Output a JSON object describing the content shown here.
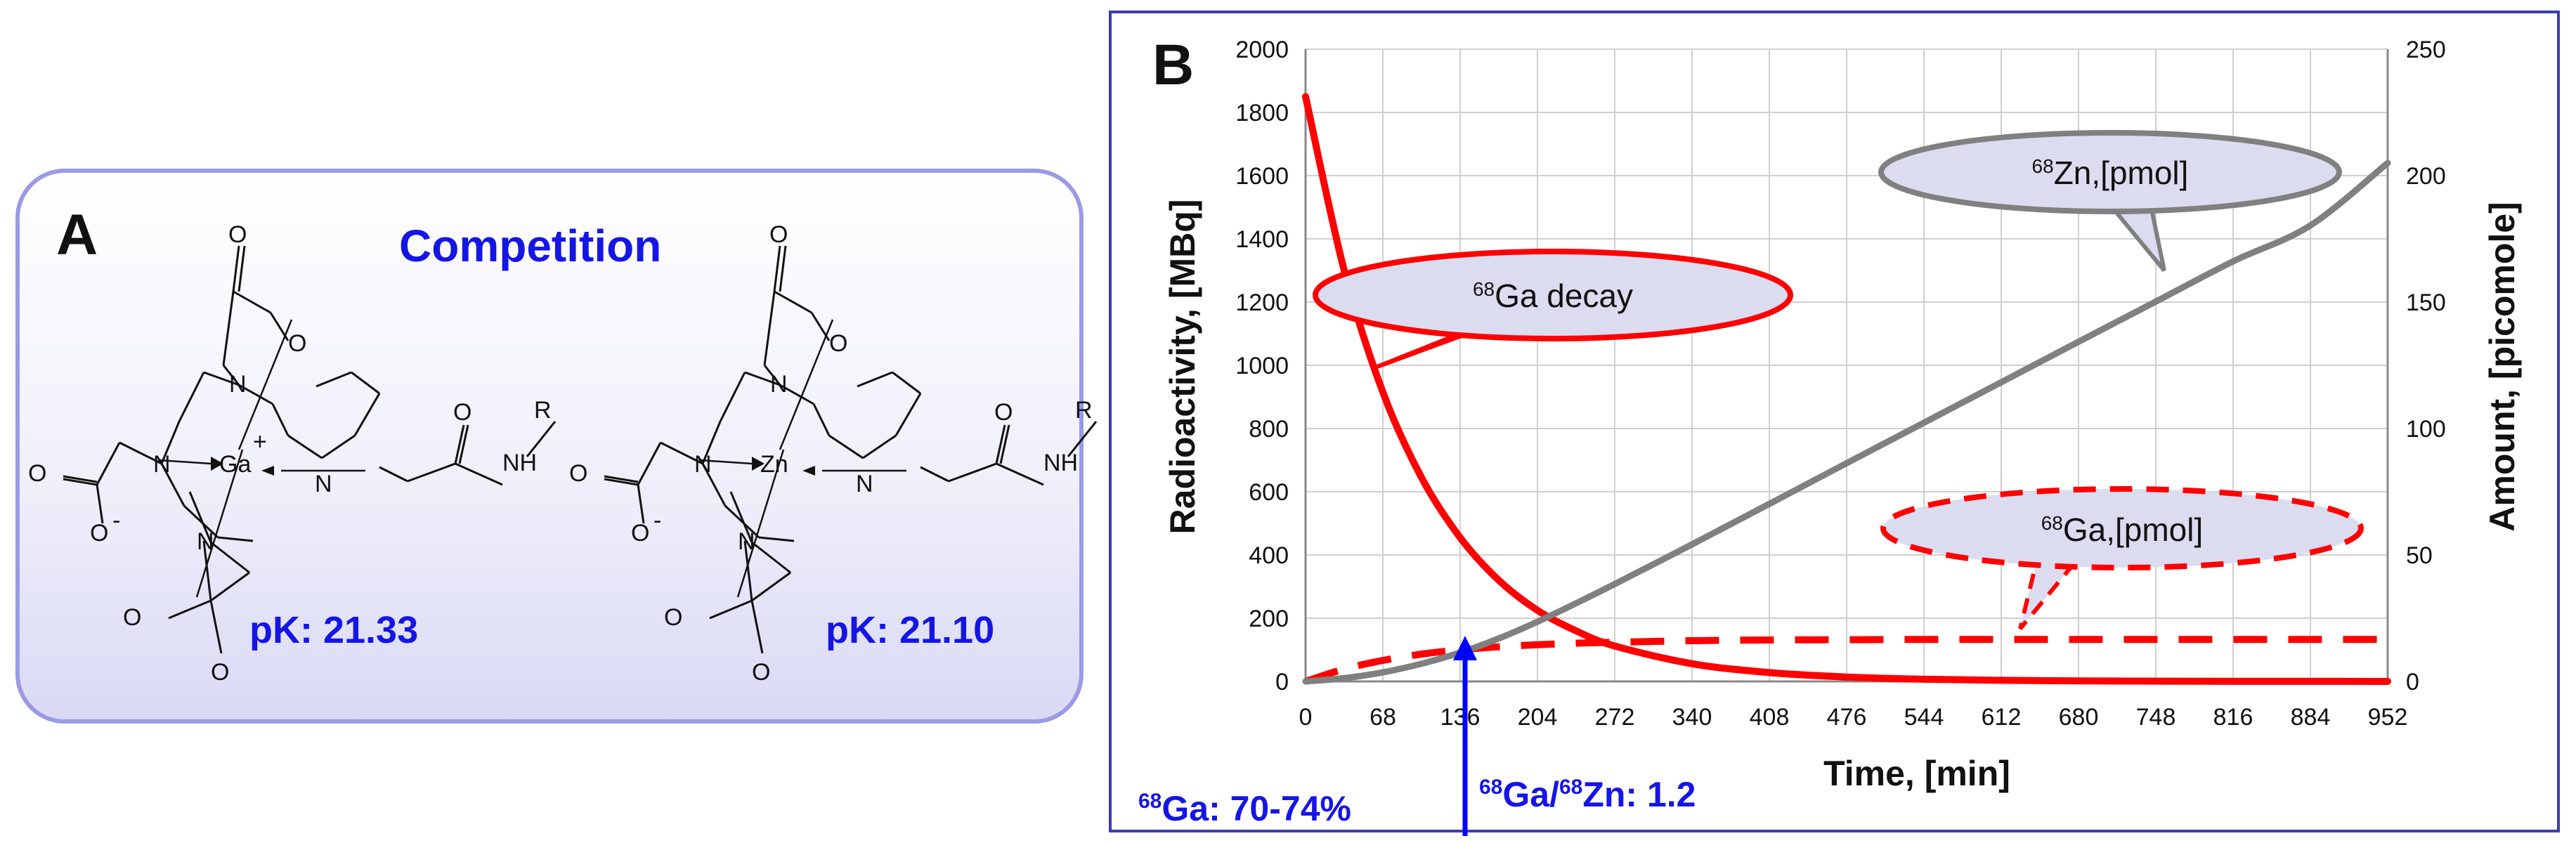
{
  "panel_a": {
    "letter": "A",
    "title": "Competition",
    "mol1": {
      "pk": "pK: 21.33",
      "metal": "Ga",
      "charge": "+"
    },
    "mol2": {
      "pk": "pK: 21.10",
      "metal": "Zn"
    },
    "atoms": {
      "N": "N",
      "O": "O",
      "R": "R",
      "NH": "NH",
      "minus": "-"
    }
  },
  "panel_b": {
    "letter": "B",
    "colors": {
      "ga": "#ff0000",
      "zn": "#808080",
      "arrow": "#0000ff",
      "callout_fill": "#dcdcf0"
    },
    "callouts": {
      "ga_decay": {
        "sup": "68",
        "text": "Ga decay"
      },
      "zn_pmol": {
        "sup": "68",
        "text": "Zn,[pmol]"
      },
      "ga_pmol": {
        "sup": "68",
        "text": "Ga,[pmol]"
      }
    },
    "annot": {
      "left_sup": "68",
      "left_text": "Ga: 70-74%",
      "right_sup1": "68",
      "right_mid": "Ga/",
      "right_sup2": "68",
      "right_text": "Zn: 1.2"
    }
  },
  "chart_data": {
    "type": "line",
    "xlabel": "Time, [min]",
    "ylabel": "Radioactivity, [MBq]",
    "y2label": "Amount, [picomole]",
    "xlim": [
      0,
      952
    ],
    "ylim": [
      0,
      2000
    ],
    "y2lim": [
      0,
      250
    ],
    "xticks": [
      "0",
      "68",
      "136",
      "204",
      "272",
      "340",
      "408",
      "476",
      "544",
      "612",
      "680",
      "748",
      "816",
      "884",
      "952"
    ],
    "yticks": [
      "0",
      "200",
      "400",
      "600",
      "800",
      "1000",
      "1200",
      "1400",
      "1600",
      "1800",
      "2000"
    ],
    "y2ticks": [
      "0",
      "50",
      "100",
      "150",
      "200",
      "250"
    ],
    "grid": true,
    "series": [
      {
        "name": "68Ga decay",
        "axis": "left",
        "style": "solid",
        "color": "#ff0000",
        "x": [
          0,
          34,
          68,
          102,
          136,
          170,
          204,
          238,
          272,
          340,
          408,
          476,
          544,
          612,
          680,
          748,
          816,
          884,
          952
        ],
        "y": [
          1850,
          1300,
          915,
          645,
          455,
          320,
          225,
          160,
          112,
          56,
          28,
          14,
          7,
          3.5,
          1.7,
          0.9,
          0.4,
          0.2,
          0.1
        ]
      },
      {
        "name": "68Ga,[pmol]",
        "axis": "right",
        "style": "dashed",
        "color": "#ff0000",
        "x": [
          0,
          34,
          68,
          102,
          136,
          170,
          204,
          238,
          272,
          340,
          408,
          476,
          544,
          612,
          680,
          748,
          816,
          884,
          952
        ],
        "y": [
          0,
          4.9,
          8.3,
          10.8,
          12.5,
          13.7,
          14.5,
          15.1,
          15.5,
          16.1,
          16.4,
          16.5,
          16.6,
          16.6,
          16.6,
          16.6,
          16.6,
          16.6,
          16.6
        ]
      },
      {
        "name": "68Zn,[pmol]",
        "axis": "right",
        "style": "solid",
        "color": "#808080",
        "x": [
          0,
          34,
          68,
          102,
          136,
          170,
          204,
          238,
          272,
          340,
          408,
          476,
          544,
          612,
          680,
          748,
          816,
          884,
          952
        ],
        "y": [
          0,
          1.3,
          3.6,
          7.0,
          11.4,
          17.0,
          23.6,
          30.9,
          38.5,
          54.2,
          70.2,
          86.3,
          102.3,
          118.3,
          134.3,
          150.2,
          166.1,
          180.3,
          205.0
        ]
      }
    ]
  }
}
